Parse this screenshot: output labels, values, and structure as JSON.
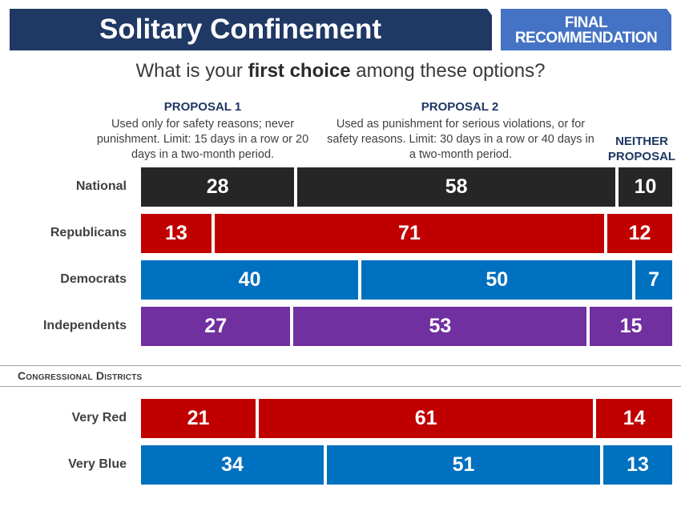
{
  "header": {
    "title": "Solitary Confinement",
    "badge_line1": "FINAL",
    "badge_line2": "RECOMMENDATION"
  },
  "question": {
    "prefix": "What is your ",
    "bold": "first choice",
    "suffix": " among these options?"
  },
  "proposals": {
    "p1_title": "PROPOSAL 1",
    "p1_desc": "Used only for safety reasons; never punishment. Limit: 15 days in a row or 20 days in a two-month period.",
    "p2_title": "PROPOSAL 2",
    "p2_desc": "Used as punishment for serious violations, or for safety reasons. Limit: 30 days in a row or 40 days in a two-month period.",
    "neither_line1": "NEITHER",
    "neither_line2": "PROPOSAL"
  },
  "section": {
    "title": "Congressional Districts"
  },
  "colors": {
    "National": "#262626",
    "Republicans": "#c00000",
    "Democrats": "#0070c0",
    "Independents": "#7030a0",
    "Very Red": "#c00000",
    "Very Blue": "#0070c0"
  },
  "chart_data": {
    "type": "bar",
    "orientation": "horizontal",
    "stacked": true,
    "categories": [
      "National",
      "Republicans",
      "Democrats",
      "Independents",
      "Very Red",
      "Very Blue"
    ],
    "series": [
      {
        "name": "PROPOSAL 1",
        "values": [
          28,
          13,
          40,
          27,
          21,
          34
        ]
      },
      {
        "name": "PROPOSAL 2",
        "values": [
          58,
          71,
          50,
          53,
          61,
          51
        ]
      },
      {
        "name": "NEITHER PROPOSAL",
        "values": [
          10,
          12,
          7,
          15,
          14,
          13
        ]
      }
    ],
    "title": "Solitary Confinement",
    "subtitle": "What is your first choice among these options?"
  }
}
